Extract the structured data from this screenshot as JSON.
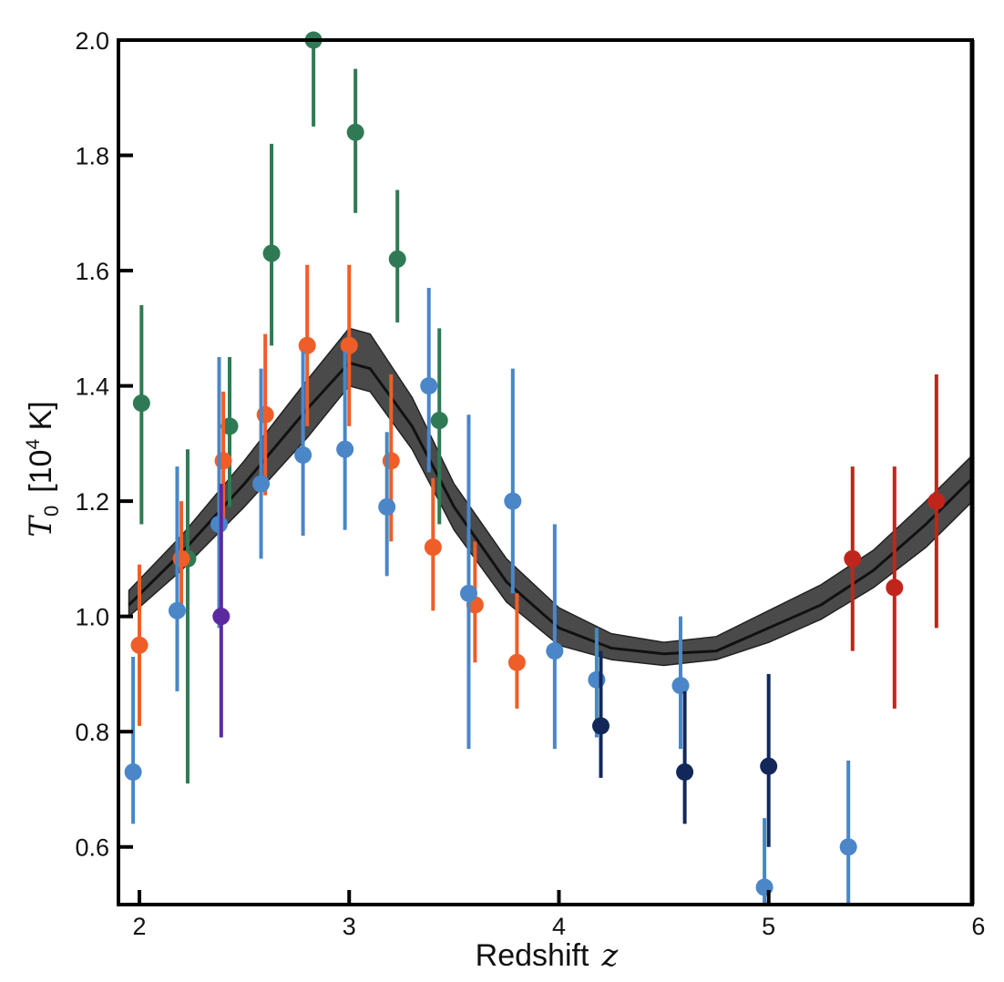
{
  "chart_data": {
    "type": "scatter",
    "title": "",
    "xlabel": "Redshift",
    "xlabel_symbol": "z",
    "ylabel_symbol": "T",
    "ylabel_subscript": "0",
    "ylabel_unit_prefix": "[10",
    "ylabel_unit_exp": "4",
    "ylabel_unit_suffix": " K]",
    "xlim": [
      1.9,
      5.97
    ],
    "ylim": [
      0.5,
      2.0
    ],
    "xticks": [
      "2",
      "3",
      "4",
      "5",
      "6"
    ],
    "yticks": [
      "0.6",
      "0.8",
      "1.0",
      "1.2",
      "1.4",
      "1.6",
      "1.8",
      "2.0"
    ],
    "grid": false,
    "legend": "none",
    "model": {
      "color": "#4a4a4a",
      "line_color": "#111111",
      "x": [
        1.95,
        2.2,
        2.5,
        2.8,
        3.0,
        3.1,
        3.3,
        3.5,
        3.75,
        4.0,
        4.25,
        4.5,
        4.75,
        5.0,
        5.25,
        5.5,
        5.75,
        6.0
      ],
      "y": [
        1.02,
        1.11,
        1.23,
        1.36,
        1.44,
        1.43,
        1.33,
        1.19,
        1.06,
        0.98,
        0.945,
        0.935,
        0.94,
        0.98,
        1.02,
        1.08,
        1.16,
        1.25
      ],
      "lower": [
        1.0,
        1.08,
        1.19,
        1.31,
        1.4,
        1.39,
        1.29,
        1.15,
        1.025,
        0.95,
        0.925,
        0.915,
        0.925,
        0.955,
        0.995,
        1.05,
        1.12,
        1.21
      ],
      "upper": [
        1.045,
        1.14,
        1.27,
        1.41,
        1.5,
        1.49,
        1.38,
        1.23,
        1.1,
        1.015,
        0.97,
        0.955,
        0.965,
        1.01,
        1.055,
        1.115,
        1.2,
        1.29
      ]
    },
    "series": [
      {
        "color": "#2f7a55",
        "points": [
          {
            "x": 2.01,
            "y": 1.37,
            "lo": 1.16,
            "hi": 1.54
          },
          {
            "x": 2.23,
            "y": 1.1,
            "lo": 0.71,
            "hi": 1.29
          },
          {
            "x": 2.43,
            "y": 1.33,
            "lo": 1.19,
            "hi": 1.45
          },
          {
            "x": 2.63,
            "y": 1.63,
            "lo": 1.47,
            "hi": 1.82
          },
          {
            "x": 2.83,
            "y": 2.0,
            "lo": 1.85,
            "hi": 2.0
          },
          {
            "x": 3.03,
            "y": 1.84,
            "lo": 1.7,
            "hi": 1.95
          },
          {
            "x": 3.23,
            "y": 1.62,
            "lo": 1.51,
            "hi": 1.74
          },
          {
            "x": 3.43,
            "y": 1.34,
            "lo": 1.16,
            "hi": 1.5
          }
        ]
      },
      {
        "color": "#ef5e28",
        "points": [
          {
            "x": 2.0,
            "y": 0.95,
            "lo": 0.81,
            "hi": 1.09
          },
          {
            "x": 2.2,
            "y": 1.1,
            "lo": 1.0,
            "hi": 1.2
          },
          {
            "x": 2.4,
            "y": 1.27,
            "lo": 1.16,
            "hi": 1.39
          },
          {
            "x": 2.6,
            "y": 1.35,
            "lo": 1.21,
            "hi": 1.49
          },
          {
            "x": 2.8,
            "y": 1.47,
            "lo": 1.33,
            "hi": 1.61
          },
          {
            "x": 3.0,
            "y": 1.47,
            "lo": 1.33,
            "hi": 1.61
          },
          {
            "x": 3.2,
            "y": 1.27,
            "lo": 1.13,
            "hi": 1.42
          },
          {
            "x": 3.4,
            "y": 1.12,
            "lo": 1.01,
            "hi": 1.24
          },
          {
            "x": 3.6,
            "y": 1.02,
            "lo": 0.92,
            "hi": 1.13
          },
          {
            "x": 3.8,
            "y": 0.92,
            "lo": 0.84,
            "hi": 1.04
          }
        ]
      },
      {
        "color": "#4a86c8",
        "points": [
          {
            "x": 1.97,
            "y": 0.73,
            "lo": 0.64,
            "hi": 0.93
          },
          {
            "x": 2.18,
            "y": 1.01,
            "lo": 0.87,
            "hi": 1.26
          },
          {
            "x": 2.38,
            "y": 1.16,
            "lo": 0.98,
            "hi": 1.45
          },
          {
            "x": 2.58,
            "y": 1.23,
            "lo": 1.1,
            "hi": 1.43
          },
          {
            "x": 2.78,
            "y": 1.28,
            "lo": 1.14,
            "hi": 1.46
          },
          {
            "x": 2.98,
            "y": 1.29,
            "lo": 1.15,
            "hi": 1.46
          },
          {
            "x": 3.18,
            "y": 1.19,
            "lo": 1.07,
            "hi": 1.32
          },
          {
            "x": 3.38,
            "y": 1.4,
            "lo": 1.25,
            "hi": 1.57
          },
          {
            "x": 3.57,
            "y": 1.04,
            "lo": 0.77,
            "hi": 1.35
          },
          {
            "x": 3.78,
            "y": 1.2,
            "lo": 1.04,
            "hi": 1.43
          },
          {
            "x": 3.98,
            "y": 0.94,
            "lo": 0.77,
            "hi": 1.16
          },
          {
            "x": 4.18,
            "y": 0.89,
            "lo": 0.79,
            "hi": 0.98
          },
          {
            "x": 4.58,
            "y": 0.88,
            "lo": 0.77,
            "hi": 1.0
          },
          {
            "x": 4.98,
            "y": 0.53,
            "lo": 0.5,
            "hi": 0.65
          },
          {
            "x": 5.38,
            "y": 0.6,
            "lo": 0.5,
            "hi": 0.75
          }
        ]
      },
      {
        "color": "#13285a",
        "points": [
          {
            "x": 4.2,
            "y": 0.81,
            "lo": 0.72,
            "hi": 0.94
          },
          {
            "x": 4.6,
            "y": 0.73,
            "lo": 0.64,
            "hi": 0.87
          },
          {
            "x": 5.0,
            "y": 0.74,
            "lo": 0.6,
            "hi": 0.9
          }
        ]
      },
      {
        "color": "#5b2aa0",
        "points": [
          {
            "x": 2.39,
            "y": 1.0,
            "lo": 0.79,
            "hi": 1.23
          }
        ]
      },
      {
        "color": "#c0251c",
        "points": [
          {
            "x": 5.4,
            "y": 1.1,
            "lo": 0.94,
            "hi": 1.26
          },
          {
            "x": 5.6,
            "y": 1.05,
            "lo": 0.84,
            "hi": 1.26
          },
          {
            "x": 5.8,
            "y": 1.2,
            "lo": 0.98,
            "hi": 1.42
          }
        ]
      }
    ]
  }
}
